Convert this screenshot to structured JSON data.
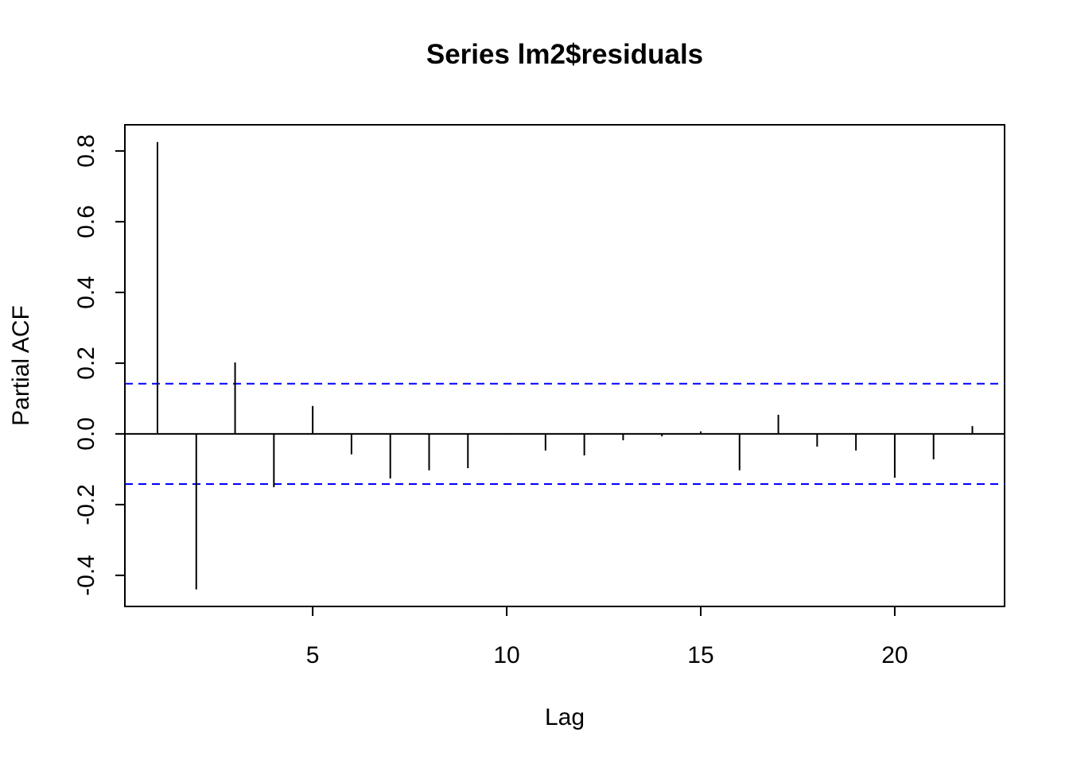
{
  "chart_data": {
    "type": "bar",
    "title": "Series  lm2$residuals",
    "x_label": "Lag",
    "y_label": "Partial ACF",
    "x": [
      1,
      2,
      3,
      4,
      5,
      6,
      7,
      8,
      9,
      10,
      11,
      12,
      13,
      14,
      15,
      16,
      17,
      18,
      19,
      20,
      21,
      22
    ],
    "values": [
      0.825,
      -0.44,
      0.202,
      -0.151,
      0.079,
      -0.058,
      -0.126,
      -0.103,
      -0.097,
      -0.002,
      -0.047,
      -0.061,
      -0.018,
      -0.007,
      0.007,
      -0.103,
      0.054,
      -0.036,
      -0.047,
      -0.124,
      -0.072,
      0.022
    ],
    "color": "#000000",
    "confidence_lines": [
      0.142,
      -0.142
    ],
    "confidence_color": "#0000ff",
    "xlim": [
      0.16,
      22.83
    ],
    "ylim": [
      -0.488,
      0.874
    ],
    "xticks": [
      5,
      10,
      15,
      20
    ],
    "yticks": [
      -0.4,
      -0.2,
      {
        "value": 0,
        "label": "0.0"
      },
      0.2,
      0.4,
      0.6,
      0.8
    ]
  }
}
